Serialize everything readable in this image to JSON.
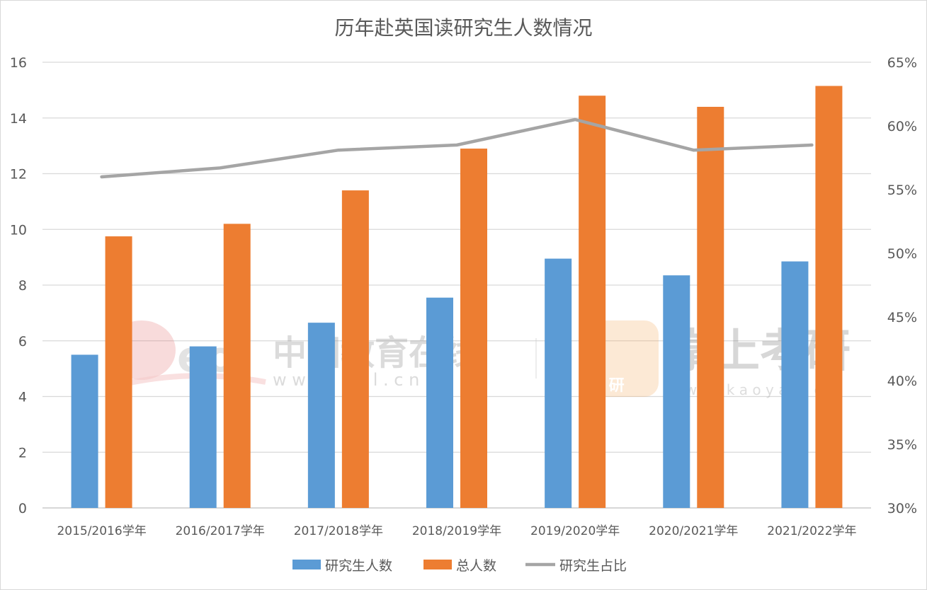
{
  "chart_data": {
    "type": "bar",
    "title": "历年赴英国读研究生人数情况",
    "categories": [
      "2015/2016学年",
      "2016/2017学年",
      "2017/2018学年",
      "2018/2019学年",
      "2019/2020学年",
      "2020/2021学年",
      "2021/2022学年"
    ],
    "series": [
      {
        "name": "研究生人数",
        "type": "bar",
        "axis": "left",
        "color": "#5b9bd5",
        "values": [
          5.5,
          5.8,
          6.65,
          7.55,
          8.95,
          8.35,
          8.85
        ]
      },
      {
        "name": "总人数",
        "type": "bar",
        "axis": "left",
        "color": "#ed7d31",
        "values": [
          9.75,
          10.2,
          11.4,
          12.9,
          14.8,
          14.4,
          15.15
        ]
      },
      {
        "name": "研究生占比",
        "type": "line",
        "axis": "right",
        "color": "#a5a5a5",
        "values": [
          0.56,
          0.567,
          0.581,
          0.585,
          0.605,
          0.581,
          0.585
        ]
      }
    ],
    "y_left": {
      "min": 0,
      "max": 16,
      "ticks": [
        "0",
        "2",
        "4",
        "6",
        "8",
        "10",
        "12",
        "14",
        "16"
      ]
    },
    "y_right": {
      "min": 0.3,
      "max": 0.65,
      "ticks": [
        "30%",
        "35%",
        "40%",
        "45%",
        "50%",
        "55%",
        "60%",
        "65%"
      ]
    },
    "grid": true,
    "legend_position": "bottom"
  },
  "watermarks": {
    "eol_name": "中国教育在线",
    "eol_url": "w w w . e o l . c n",
    "eol_logo": "eol",
    "kaoyan_name": "掌上考研",
    "kaoyan_url": "w w w . k a o y a n . c n",
    "kaoyan_badge": "考 研"
  }
}
